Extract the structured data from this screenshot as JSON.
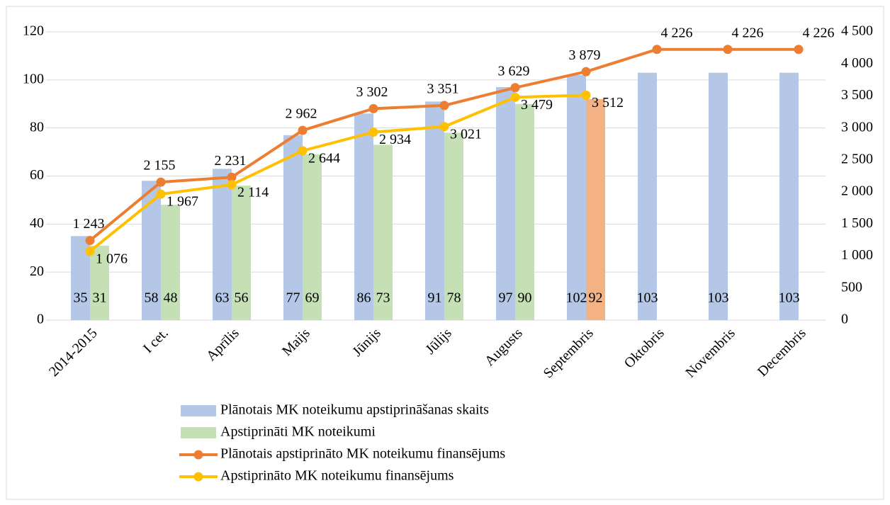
{
  "chart_data": {
    "type": "bar_line",
    "categories": [
      "2014-2015",
      "I cet.",
      "Aprīlis",
      "Maijs",
      "Jūnijs",
      "Jūlijs",
      "Augusts",
      "Septembris",
      "Oktobris",
      "Novembris",
      "Decembris"
    ],
    "series": [
      {
        "name": "Plānotais MK noteikumu apstiprināšanas skaits",
        "kind": "bar",
        "color": "#b4c7e7",
        "values": [
          35,
          58,
          63,
          77,
          86,
          91,
          97,
          102,
          103,
          103,
          103
        ]
      },
      {
        "name": "Apstiprināti MK noteikumi",
        "kind": "bar",
        "color": "#c5e0b4",
        "highlight": {
          "index": 7,
          "color": "#f4b183"
        },
        "values": [
          31,
          48,
          56,
          69,
          73,
          78,
          90,
          92,
          null,
          null,
          null
        ]
      },
      {
        "name": "Plānotais apstiprināto MK noteikumu finansējums",
        "kind": "line",
        "axis": "y2",
        "color": "#ed7d31",
        "values": [
          1243,
          2155,
          2231,
          2962,
          3302,
          3351,
          3629,
          3879,
          4226,
          4226,
          4226
        ],
        "value_labels": [
          "1 243",
          "2 155",
          "2 231",
          "2 962",
          "3 302",
          "3 351",
          "3 629",
          "3 879",
          "4 226",
          "4 226",
          "4 226"
        ]
      },
      {
        "name": "Apstiprināto MK noteikumu finansējums",
        "kind": "line",
        "axis": "y2",
        "color": "#ffc000",
        "values": [
          1076,
          1967,
          2114,
          2644,
          2934,
          3021,
          3479,
          3512,
          null,
          null,
          null
        ],
        "value_labels": [
          "1 076",
          "1 967",
          "2 114",
          "2 644",
          "2 934",
          "3 021",
          "3 479",
          "3 512",
          null,
          null,
          null
        ]
      }
    ],
    "ylim": [
      0,
      120
    ],
    "yticks": [
      0,
      20,
      40,
      60,
      80,
      100,
      120
    ],
    "y2lim": [
      0,
      4500
    ],
    "y2ticks": [
      0,
      500,
      {
        "value": 1000,
        "label": "1 000"
      },
      {
        "value": 1500,
        "label": "1 500"
      },
      {
        "value": 2000,
        "label": "2 000"
      },
      {
        "value": 2500,
        "label": "2 500"
      },
      {
        "value": 3000,
        "label": "3 000"
      },
      {
        "value": 3500,
        "label": "3 500"
      },
      {
        "value": 4000,
        "label": "4 000"
      },
      {
        "value": 4500,
        "label": "4 500"
      }
    ],
    "grid": true,
    "legend": "bottom"
  }
}
